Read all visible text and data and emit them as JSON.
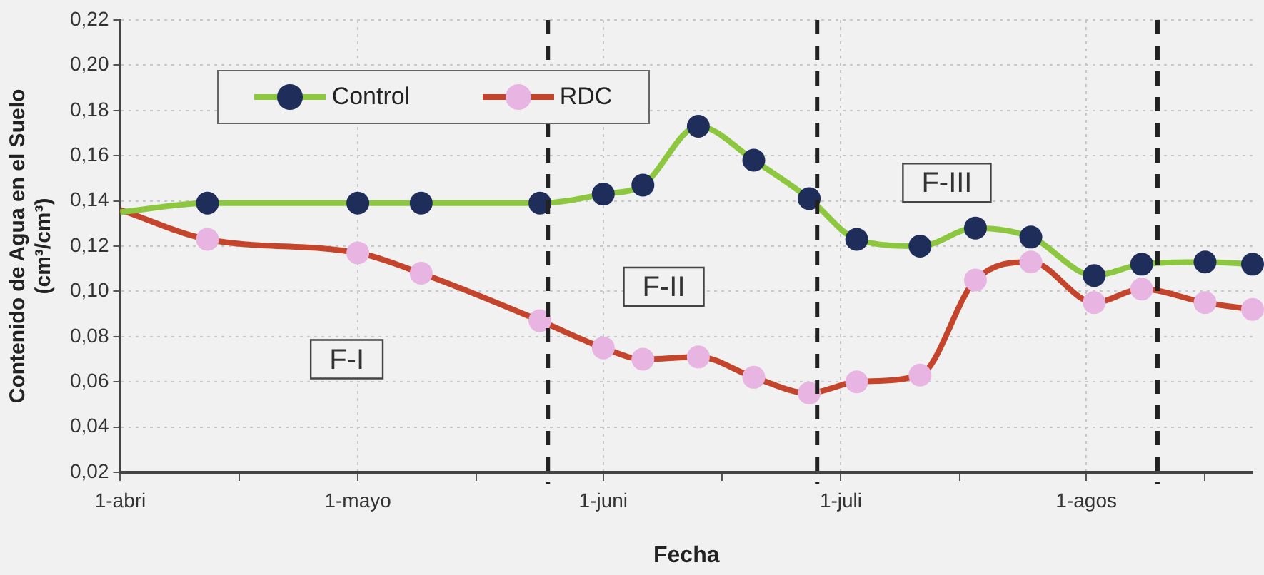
{
  "chart_data": {
    "type": "line",
    "xlabel": "Fecha",
    "ylabel": "Contenido de Agua en el Suelo (cm³/cm³)",
    "x": [
      "--04-01",
      "--04-12",
      "--05-01",
      "--05-09",
      "--05-24",
      "--06-01",
      "--06-06",
      "--06-13",
      "--06-20",
      "--06-27",
      "--07-03",
      "--07-11",
      "--07-18",
      "--07-25",
      "--08-02",
      "--08-08",
      "--08-16",
      "--08-22"
    ],
    "series": [
      {
        "name": "Control",
        "color": "#8dc63f",
        "colors": [
          null,
          "#1f2d5a",
          "#1f2d5a",
          "#1f2d5a",
          "#1f2d5a",
          "#1f2d5a",
          "#1f2d5a",
          "#1f2d5a",
          "#1f2d5a",
          "#1f2d5a",
          "#1f2d5a",
          "#1f2d5a",
          "#1f2d5a",
          "#1f2d5a",
          "#1f2d5a",
          "#1f2d5a",
          "#1f2d5a",
          "#1f2d5a"
        ],
        "values": [
          0.135,
          0.139,
          0.139,
          0.139,
          0.139,
          0.143,
          0.147,
          0.173,
          0.158,
          0.141,
          0.123,
          0.12,
          0.128,
          0.124,
          0.107,
          0.112,
          0.113,
          0.112
        ]
      },
      {
        "name": "RDC",
        "color": "#c4442c",
        "colors": [
          null,
          "#e8b4e2",
          "#e8b4e2",
          "#e8b4e2",
          "#e8b4e2",
          "#e8b4e2",
          "#e8b4e2",
          "#e8b4e2",
          "#e8b4e2",
          "#e8b4e2",
          "#e8b4e2",
          "#e8b4e2",
          "#e8b4e2",
          "#e8b4e2",
          "#e8b4e2",
          "#e8b4e2",
          "#e8b4e2",
          "#e8b4e2"
        ],
        "values": [
          0.136,
          0.123,
          0.117,
          0.108,
          0.087,
          0.075,
          0.07,
          0.071,
          0.062,
          0.055,
          0.06,
          0.063,
          0.105,
          0.113,
          0.095,
          0.101,
          0.095,
          0.092
        ]
      }
    ],
    "xlim": [
      "--04-01",
      "--08-22"
    ],
    "xticks": [
      {
        "value": "--04-01",
        "label": "1-abri"
      },
      {
        "value": "--04-16",
        "label": null
      },
      {
        "value": "--05-01",
        "label": "1-mayo"
      },
      {
        "value": "--05-16",
        "label": null
      },
      {
        "value": "--06-01",
        "label": "1-juni"
      },
      {
        "value": "--06-16",
        "label": null
      },
      {
        "value": "--07-01",
        "label": "1-juli"
      },
      {
        "value": "--07-16",
        "label": null
      },
      {
        "value": "--08-01",
        "label": "1-agos"
      },
      {
        "value": "--08-16",
        "label": null
      }
    ],
    "ylim": [
      0.02,
      0.22
    ],
    "yticks": [
      {
        "value": 0.02,
        "label": "0,02"
      },
      {
        "value": 0.04,
        "label": "0,04"
      },
      {
        "value": 0.06,
        "label": "0,06"
      },
      {
        "value": 0.08,
        "label": "0,08"
      },
      {
        "value": 0.1,
        "label": "0,10"
      },
      {
        "value": 0.12,
        "label": "0,12"
      },
      {
        "value": 0.14,
        "label": "0,14"
      },
      {
        "value": 0.16,
        "label": "0,16"
      },
      {
        "value": 0.18,
        "label": "0,18"
      },
      {
        "value": 0.2,
        "label": "0,20"
      },
      {
        "value": 0.22,
        "label": "0,22"
      }
    ],
    "ref_lines": [
      {
        "axis": "x",
        "value": "--05-25",
        "color": "#222222",
        "line_style": "dashed"
      },
      {
        "axis": "x",
        "value": "--06-28",
        "color": "#222222",
        "line_style": "dashed"
      },
      {
        "axis": "x",
        "value": "--08-10",
        "color": "#222222",
        "line_style": "dashed"
      }
    ],
    "annotations": [
      "F-I",
      "F-II",
      "F-III"
    ],
    "grid": true,
    "legend": "top left",
    "marker": "circle",
    "line_style": "solid"
  }
}
